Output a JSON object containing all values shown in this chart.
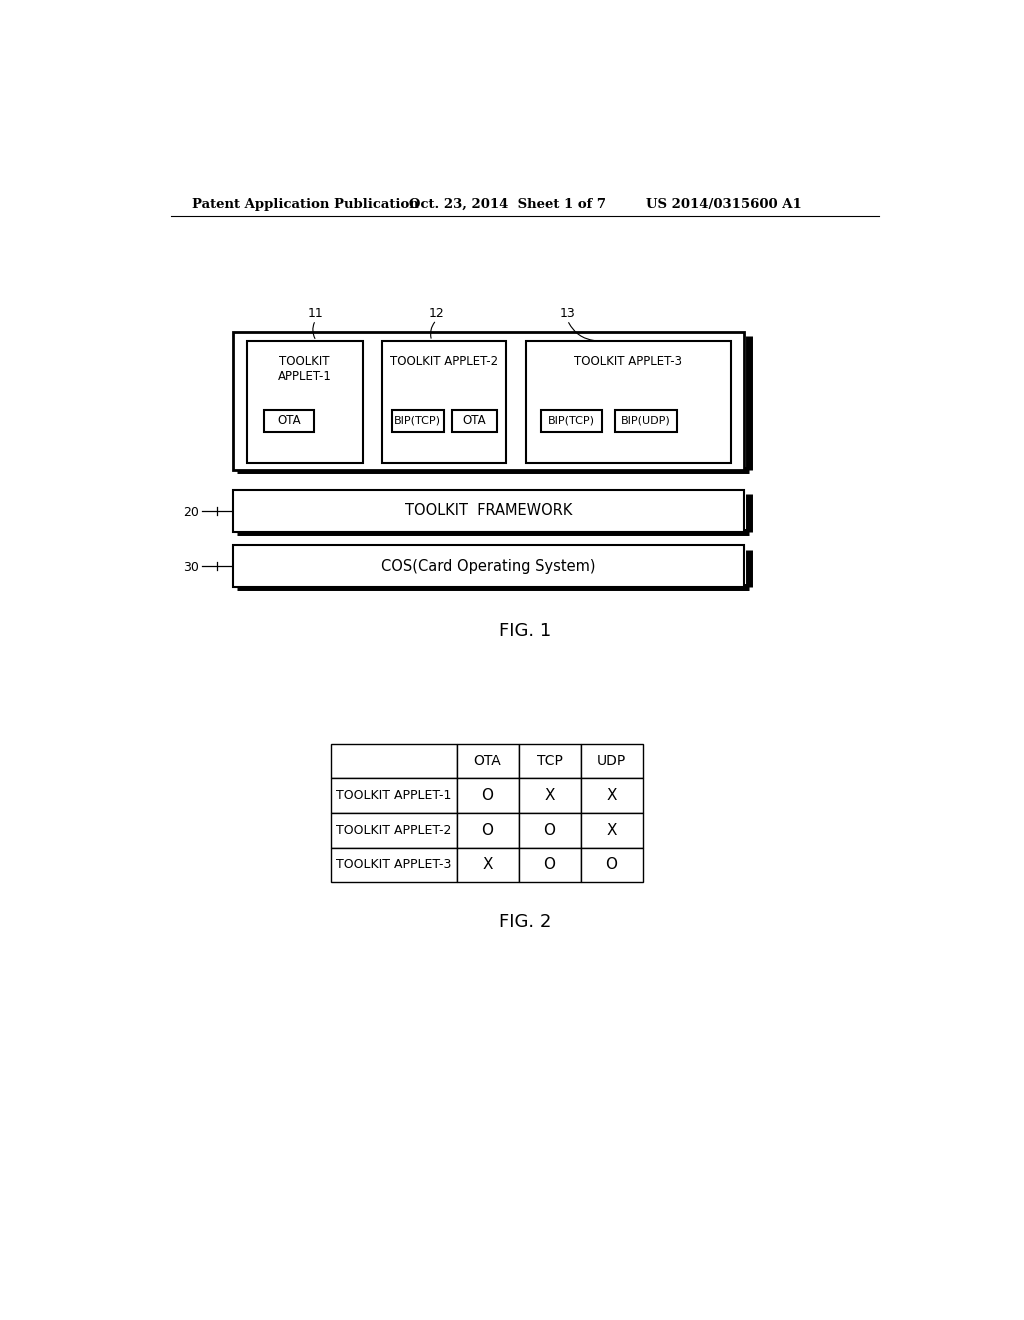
{
  "bg_color": "#ffffff",
  "header_left": "Patent Application Publication",
  "header_mid": "Oct. 23, 2014  Sheet 1 of 7",
  "header_right": "US 2014/0315600 A1",
  "fig1_label": "FIG. 1",
  "fig2_label": "FIG. 2",
  "label_11": "11",
  "label_12": "12",
  "label_13": "13",
  "label_20": "20",
  "label_30": "30",
  "applet1_title": "TOOLKIT\nAPPLET-1",
  "applet1_sub": "OTA",
  "applet2_title": "TOOLKIT APPLET-2",
  "applet2_sub1": "BIP(TCP)",
  "applet2_sub2": "OTA",
  "applet3_title": "TOOLKIT APPLET-3",
  "applet3_sub1": "BIP(TCP)",
  "applet3_sub2": "BIP(UDP)",
  "toolkit_framework": "TOOLKIT  FRAMEWORK",
  "cos_label": "COS(Card Operating System)",
  "table_headers": [
    "",
    "OTA",
    "TCP",
    "UDP"
  ],
  "table_rows": [
    [
      "TOOLKIT APPLET-1",
      "O",
      "X",
      "X"
    ],
    [
      "TOOLKIT APPLET-2",
      "O",
      "O",
      "X"
    ],
    [
      "TOOLKIT APPLET-3",
      "X",
      "O",
      "O"
    ]
  ]
}
